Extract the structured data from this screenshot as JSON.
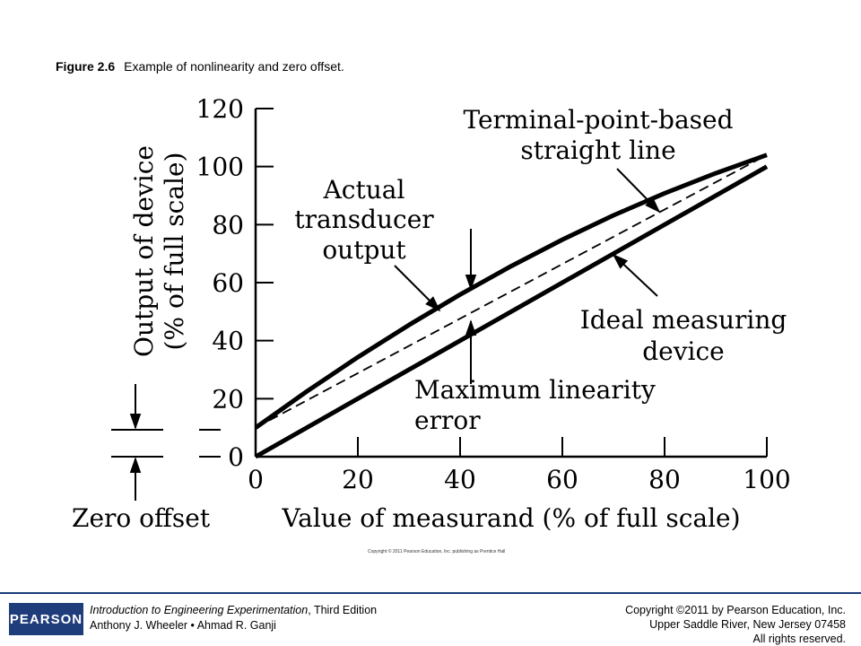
{
  "caption": {
    "number": "Figure 2.6",
    "text": "Example of nonlinearity and zero offset."
  },
  "chart_data": {
    "type": "line",
    "xlabel": "Value of measurand (% of full scale)",
    "ylabel_line1": "Output of device",
    "ylabel_line2": "(% of full scale)",
    "xlim": [
      0,
      100
    ],
    "ylim": [
      0,
      120
    ],
    "x_ticks": [
      0,
      20,
      40,
      60,
      80,
      100
    ],
    "y_ticks": [
      0,
      20,
      40,
      60,
      80,
      100,
      120
    ],
    "x_tick_labels": [
      "0",
      "20",
      "40",
      "60",
      "80",
      "100"
    ],
    "y_tick_labels": [
      "0",
      "20",
      "40",
      "60",
      "80",
      "100",
      "120"
    ],
    "series": [
      {
        "name": "Actual transducer output",
        "style": "thick",
        "x": [
          0,
          10,
          20,
          30,
          40,
          50,
          60,
          70,
          80,
          90,
          100
        ],
        "y": [
          10,
          22.5,
          34.3,
          45.4,
          55.9,
          65.7,
          74.8,
          83.2,
          90.8,
          97.7,
          104
        ]
      },
      {
        "name": "Ideal measuring device",
        "style": "thick",
        "x": [
          0,
          100
        ],
        "y": [
          0,
          100
        ]
      },
      {
        "name": "Terminal-point-based straight line",
        "style": "dashed",
        "x": [
          0,
          100
        ],
        "y": [
          10,
          104
        ]
      }
    ],
    "annotations": {
      "terminal_line1": "Terminal-point-based",
      "terminal_line2": "straight line",
      "actual_line1": "Actual",
      "actual_line2": "transducer",
      "actual_line3": "output",
      "ideal_line1": "Ideal measuring",
      "ideal_line2": "device",
      "maxerr_line1": "Maximum linearity",
      "maxerr_line2": "error",
      "zero_offset": "Zero offset"
    }
  },
  "copyright_small": "Copyright © 2011 Pearson Education, Inc. publishing as Prentice Hall",
  "footer": {
    "logo": "PEARSON",
    "book_title": "Introduction to Engineering Experimentation",
    "book_edition": ", Third Edition",
    "authors": "Anthony J. Wheeler • Ahmad R. Ganji",
    "copyright_line1": "Copyright ©2011 by Pearson Education, Inc.",
    "copyright_line2": "Upper Saddle River, New Jersey 07458",
    "copyright_line3": "All rights reserved."
  }
}
